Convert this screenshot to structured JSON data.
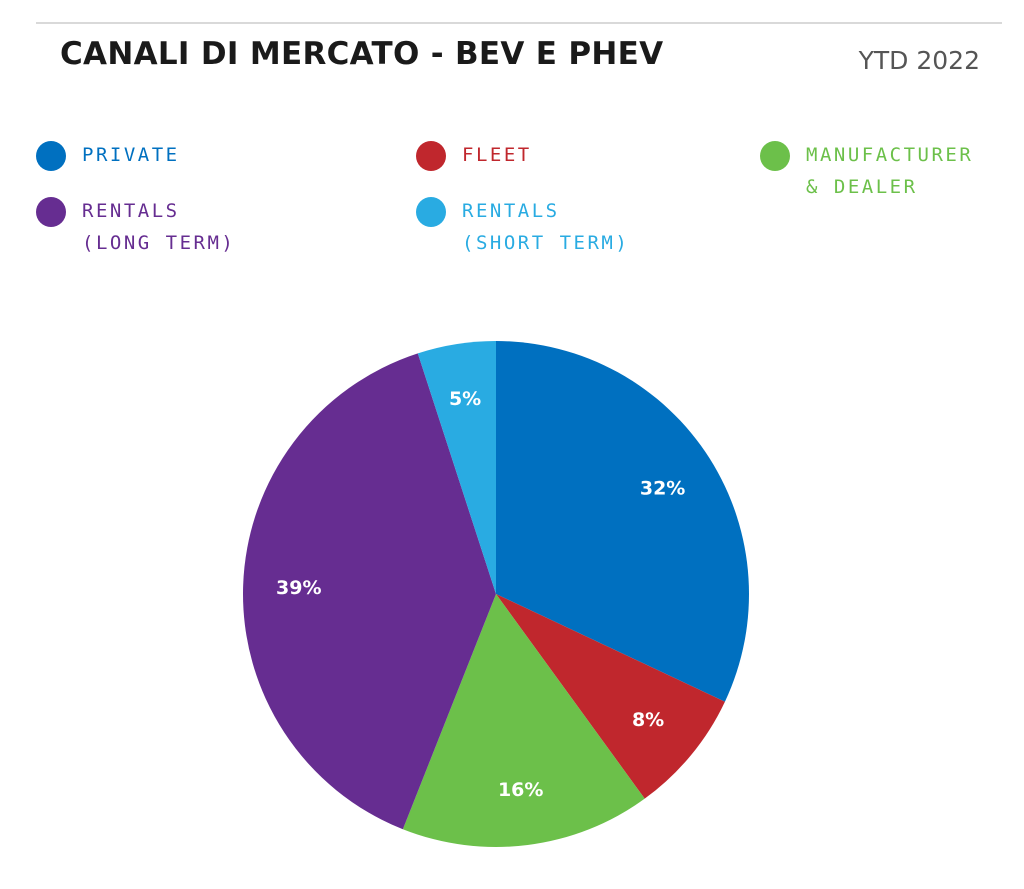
{
  "header": {
    "title": "CANALI DI MERCATO - BEV E PHEV",
    "period": "YTD 2022"
  },
  "legend": [
    {
      "lines": [
        "PRIVATE"
      ],
      "color": "#0070c0"
    },
    {
      "lines": [
        "FLEET"
      ],
      "color": "#c0272d"
    },
    {
      "lines": [
        "MANUFACTURER",
        "& DEALER"
      ],
      "color": "#6cc04a"
    },
    {
      "lines": [
        "RENTALS",
        "(LONG TERM)"
      ],
      "color": "#662d91"
    },
    {
      "lines": [
        "RENTALS",
        "(SHORT TERM)"
      ],
      "color": "#29abe2"
    }
  ],
  "chart_data": {
    "type": "pie",
    "title": "CANALI DI MERCATO - BEV E PHEV",
    "subtitle": "YTD 2022",
    "categories": [
      "PRIVATE",
      "FLEET",
      "MANUFACTURER & DEALER",
      "RENTALS (LONG TERM)",
      "RENTALS (SHORT TERM)"
    ],
    "values": [
      32,
      8,
      16,
      39,
      5
    ],
    "labels": [
      "32%",
      "8%",
      "16%",
      "39%",
      "5%"
    ],
    "colors": [
      "#0070c0",
      "#c0272d",
      "#6cc04a",
      "#662d91",
      "#29abe2"
    ],
    "start": "top",
    "direction": "clockwise",
    "legend_position": "top"
  }
}
